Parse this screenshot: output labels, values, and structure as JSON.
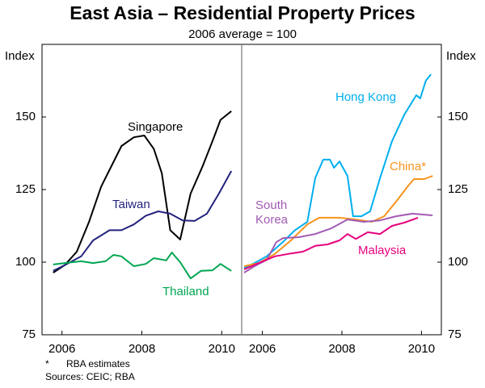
{
  "title": "East Asia – Residential Property Prices",
  "subtitle": "2006 average = 100",
  "notes": [
    {
      "marker": "*",
      "text": "RBA estimates"
    }
  ],
  "source": "Sources: CEIC; RBA",
  "chart_data": [
    {
      "type": "line",
      "ylabel": "Index",
      "yaxis_side": "left",
      "xlim": [
        2005.5,
        2010.5
      ],
      "xticks": [
        2006,
        2008,
        2010
      ],
      "ylim": [
        75,
        175
      ],
      "yticks": [
        75,
        100,
        125,
        150
      ],
      "series": [
        {
          "name": "Singapore",
          "color": "#000000",
          "x": [
            2005.78,
            2006.07,
            2006.37,
            2006.68,
            2006.98,
            2007.49,
            2007.8,
            2008.06,
            2008.3,
            2008.5,
            2008.71,
            2008.96,
            2009.22,
            2009.52,
            2009.77,
            2009.97,
            2010.24
          ],
          "values": [
            96.4,
            99,
            103.6,
            114,
            126,
            140,
            143,
            143.6,
            139,
            130.6,
            111,
            107.8,
            123.6,
            133,
            141.7,
            149,
            152
          ]
        },
        {
          "name": "Taiwan",
          "color": "#23237e",
          "x": [
            2005.78,
            2006.07,
            2006.48,
            2006.78,
            2007.19,
            2007.49,
            2007.8,
            2008.1,
            2008.41,
            2008.71,
            2009.02,
            2009.32,
            2009.63,
            2009.93,
            2010.24
          ],
          "values": [
            97,
            99,
            102,
            107.5,
            111,
            111,
            113,
            116,
            117.5,
            116.7,
            114.4,
            114.2,
            116.7,
            123.6,
            131.4
          ]
        },
        {
          "name": "Thailand",
          "color": "#00a651",
          "x": [
            2005.78,
            2006.07,
            2006.48,
            2006.78,
            2007.09,
            2007.29,
            2007.49,
            2007.8,
            2008.1,
            2008.3,
            2008.61,
            2008.75,
            2008.96,
            2009.22,
            2009.48,
            2009.77,
            2009.97,
            2010.24
          ],
          "values": [
            99.2,
            99.7,
            100.3,
            99.7,
            100.3,
            102.5,
            102,
            98.6,
            99.4,
            101.4,
            100.6,
            103.3,
            100,
            94.4,
            97,
            97.2,
            99.4,
            97
          ]
        }
      ]
    },
    {
      "type": "line",
      "ylabel": "Index",
      "yaxis_side": "right",
      "xlim": [
        2005.5,
        2010.5
      ],
      "xticks": [
        2006,
        2008,
        2010
      ],
      "ylim": [
        75,
        175
      ],
      "yticks": [
        75,
        100,
        125,
        150
      ],
      "series": [
        {
          "name": "Hong Kong",
          "color": "#00aeef",
          "x": [
            2005.54,
            2005.8,
            2006.11,
            2006.52,
            2006.82,
            2007.13,
            2007.33,
            2007.53,
            2007.7,
            2007.8,
            2007.94,
            2008.14,
            2008.28,
            2008.49,
            2008.71,
            2008.96,
            2009.26,
            2009.57,
            2009.87,
            2009.97,
            2010.11,
            2010.24
          ],
          "values": [
            98,
            99.7,
            102,
            107,
            111,
            113.9,
            129,
            135.3,
            135.3,
            132.5,
            134.7,
            129.7,
            115.8,
            115.8,
            117.5,
            129,
            141.7,
            150.8,
            157.5,
            156.4,
            162.5,
            164.7
          ]
        },
        {
          "name": "China*",
          "color": "#f7941d",
          "x": [
            2005.54,
            2005.91,
            2006.31,
            2006.72,
            2007.13,
            2007.43,
            2007.94,
            2008.35,
            2008.75,
            2009.06,
            2009.36,
            2009.67,
            2009.81,
            2010.07,
            2010.28
          ],
          "values": [
            98.6,
            99.7,
            102.8,
            107.5,
            113,
            115.3,
            115.3,
            114.7,
            113.9,
            115.8,
            120.8,
            126.4,
            128.6,
            128.6,
            129.7
          ]
        },
        {
          "name": "South Korea",
          "color": "#a25ab4",
          "x": [
            2005.54,
            2005.8,
            2006.11,
            2006.35,
            2006.52,
            2006.92,
            2007.33,
            2007.74,
            2008.14,
            2008.55,
            2008.96,
            2009.36,
            2009.77,
            2010.28
          ],
          "values": [
            96.4,
            98.6,
            100.8,
            106.9,
            108.3,
            108.6,
            109.7,
            111.7,
            114.7,
            113.9,
            114.4,
            115.8,
            116.7,
            116.1
          ]
        },
        {
          "name": "Malaysia",
          "color": "#e6007e",
          "x": [
            2005.54,
            2005.91,
            2006.31,
            2006.72,
            2007.02,
            2007.33,
            2007.64,
            2007.94,
            2008.14,
            2008.35,
            2008.65,
            2008.96,
            2009.26,
            2009.57,
            2009.91
          ],
          "values": [
            97.5,
            99.7,
            102,
            103,
            103.6,
            105.6,
            106.1,
            107.5,
            109.7,
            108,
            110.3,
            109.7,
            112.5,
            113.6,
            115.3
          ]
        }
      ]
    }
  ]
}
